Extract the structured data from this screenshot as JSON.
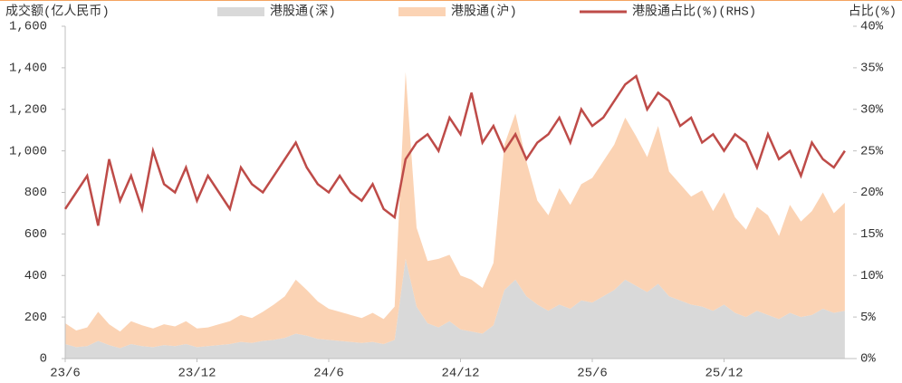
{
  "chart_data": {
    "type": "area",
    "y_label": "成交额(亿人民币)",
    "y2_label": "占比(%)",
    "categories": [
      "23/6",
      null,
      null,
      null,
      null,
      null,
      null,
      null,
      null,
      null,
      null,
      null,
      "23/12",
      null,
      null,
      null,
      null,
      null,
      null,
      null,
      null,
      null,
      null,
      null,
      "24/6",
      null,
      null,
      null,
      null,
      null,
      null,
      null,
      null,
      null,
      null,
      null,
      "24/12",
      null,
      null,
      null,
      null,
      null,
      null,
      null,
      null,
      null,
      null,
      null,
      "25/6",
      null,
      null,
      null,
      null,
      null,
      null,
      null,
      null,
      null,
      null,
      null,
      "25/12",
      null,
      null,
      null,
      null,
      null,
      null,
      null,
      null,
      null,
      null,
      null
    ],
    "series": [
      {
        "name": "港股通(深)",
        "color": "#d9d9d9",
        "values": [
          70,
          55,
          60,
          85,
          65,
          50,
          70,
          60,
          55,
          65,
          60,
          70,
          55,
          60,
          65,
          70,
          80,
          75,
          85,
          90,
          100,
          120,
          110,
          95,
          90,
          85,
          80,
          75,
          80,
          70,
          90,
          480,
          250,
          170,
          150,
          180,
          140,
          130,
          120,
          160,
          330,
          380,
          300,
          260,
          230,
          260,
          240,
          280,
          270,
          300,
          330,
          380,
          350,
          320,
          360,
          300,
          280,
          260,
          250,
          230,
          260,
          220,
          200,
          230,
          210,
          190,
          220,
          200,
          210,
          240,
          220,
          230
        ]
      },
      {
        "name": "港股通(沪)",
        "color": "#fbd3b4",
        "values": [
          100,
          80,
          90,
          140,
          100,
          80,
          110,
          100,
          90,
          100,
          95,
          110,
          90,
          90,
          100,
          110,
          130,
          120,
          140,
          170,
          200,
          260,
          220,
          180,
          150,
          140,
          130,
          120,
          140,
          120,
          160,
          900,
          380,
          300,
          330,
          320,
          260,
          250,
          220,
          300,
          700,
          800,
          650,
          500,
          460,
          560,
          500,
          560,
          600,
          650,
          700,
          780,
          720,
          650,
          760,
          600,
          560,
          520,
          560,
          480,
          540,
          460,
          420,
          500,
          480,
          400,
          520,
          460,
          500,
          560,
          480,
          520
        ]
      },
      {
        "name": "港股通占比(%)(RHS)",
        "color": "#be4b48",
        "type": "line",
        "axis": "y2",
        "values": [
          18,
          20,
          22,
          16,
          24,
          19,
          22,
          18,
          25,
          21,
          20,
          23,
          19,
          22,
          20,
          18,
          23,
          21,
          20,
          22,
          24,
          26,
          23,
          21,
          20,
          22,
          20,
          19,
          21,
          18,
          17,
          24,
          26,
          27,
          25,
          29,
          27,
          32,
          26,
          28,
          25,
          27,
          24,
          26,
          27,
          29,
          26,
          30,
          28,
          29,
          31,
          33,
          34,
          30,
          32,
          31,
          28,
          29,
          26,
          27,
          25,
          27,
          26,
          23,
          27,
          24,
          25,
          22,
          26,
          24,
          23,
          25
        ]
      }
    ],
    "ylim": [
      0,
      1600
    ],
    "yticks": [
      0,
      200,
      400,
      600,
      800,
      {
        "value": 1000,
        "label": "1,000"
      },
      {
        "value": 1200,
        "label": "1,200"
      },
      {
        "value": 1400,
        "label": "1,400"
      },
      {
        "value": 1600,
        "label": "1,600"
      }
    ],
    "y2lim": [
      0,
      40
    ],
    "y2ticks": [
      {
        "value": 0,
        "label": "0%"
      },
      {
        "value": 5,
        "label": "5%"
      },
      {
        "value": 10,
        "label": "10%"
      },
      {
        "value": 15,
        "label": "15%"
      },
      {
        "value": 20,
        "label": "20%"
      },
      {
        "value": 25,
        "label": "25%"
      },
      {
        "value": 30,
        "label": "30%"
      },
      {
        "value": 35,
        "label": "35%"
      },
      {
        "value": 40,
        "label": "40%"
      }
    ]
  }
}
